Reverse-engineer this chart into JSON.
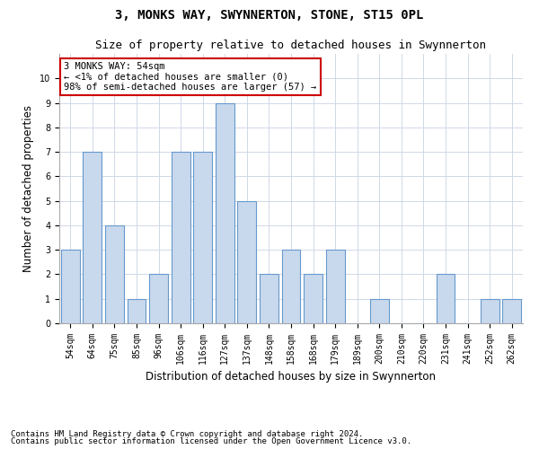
{
  "title": "3, MONKS WAY, SWYNNERTON, STONE, ST15 0PL",
  "subtitle": "Size of property relative to detached houses in Swynnerton",
  "xlabel": "Distribution of detached houses by size in Swynnerton",
  "ylabel": "Number of detached properties",
  "categories": [
    "54sqm",
    "64sqm",
    "75sqm",
    "85sqm",
    "96sqm",
    "106sqm",
    "116sqm",
    "127sqm",
    "137sqm",
    "148sqm",
    "158sqm",
    "168sqm",
    "179sqm",
    "189sqm",
    "200sqm",
    "210sqm",
    "220sqm",
    "231sqm",
    "241sqm",
    "252sqm",
    "262sqm"
  ],
  "values": [
    3,
    7,
    4,
    1,
    2,
    7,
    7,
    9,
    5,
    2,
    3,
    2,
    3,
    0,
    1,
    0,
    0,
    2,
    0,
    1,
    1
  ],
  "bar_color": "#c9d9ed",
  "bar_edgecolor": "#6699cc",
  "annotation_title": "3 MONKS WAY: 54sqm",
  "annotation_line1": "← <1% of detached houses are smaller (0)",
  "annotation_line2": "98% of semi-detached houses are larger (57) →",
  "annotation_box_edgecolor": "#cc0000",
  "ylim": [
    0,
    11
  ],
  "yticks": [
    0,
    1,
    2,
    3,
    4,
    5,
    6,
    7,
    8,
    9,
    10,
    11
  ],
  "footer1": "Contains HM Land Registry data © Crown copyright and database right 2024.",
  "footer2": "Contains public sector information licensed under the Open Government Licence v3.0.",
  "background_color": "#ffffff",
  "grid_color": "#d0d8e8",
  "title_fontsize": 10,
  "subtitle_fontsize": 9,
  "axis_label_fontsize": 8.5,
  "tick_fontsize": 7,
  "annotation_fontsize": 7.5,
  "footer_fontsize": 6.5
}
